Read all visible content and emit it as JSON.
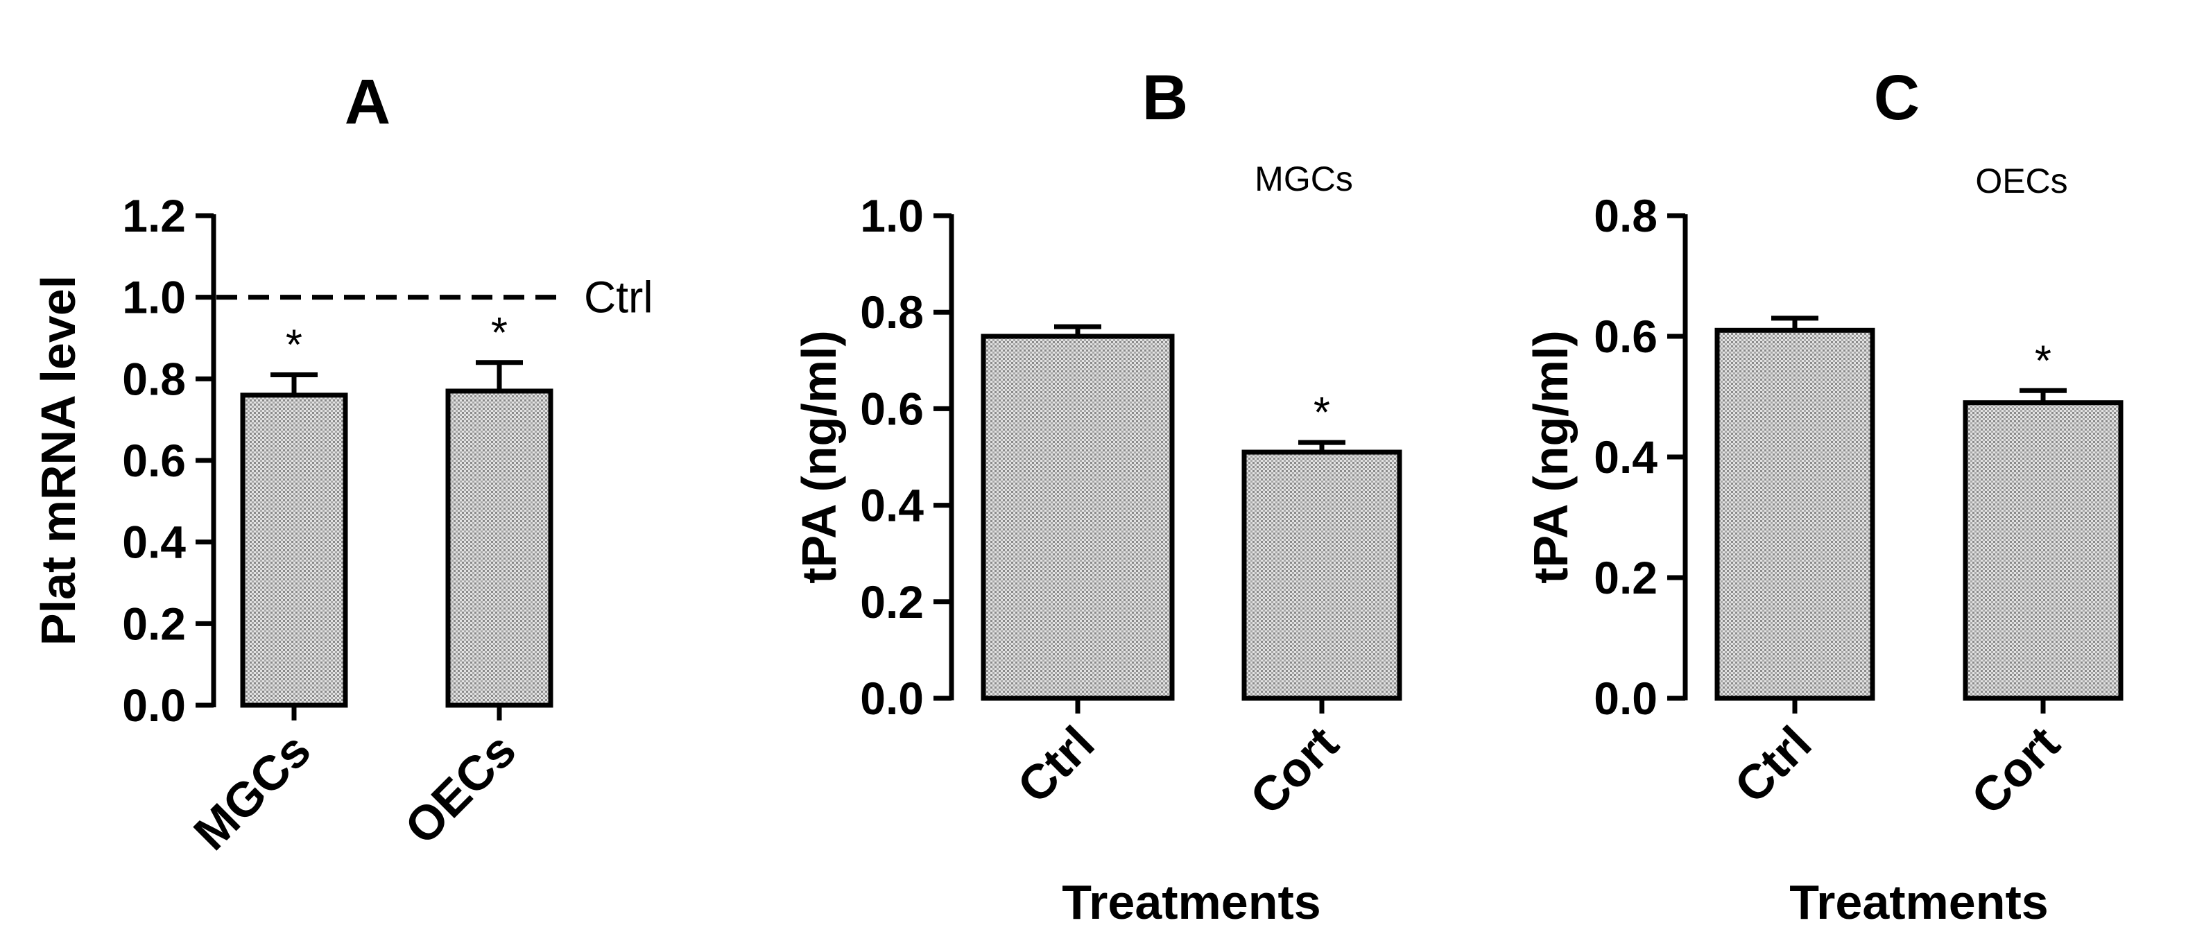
{
  "chart_data": [
    {
      "panel": "A",
      "type": "bar",
      "title": "",
      "categories": [
        "MGCs",
        "OECs"
      ],
      "values": [
        0.76,
        0.77
      ],
      "errors": [
        0.05,
        0.07
      ],
      "significance": [
        "*",
        "*"
      ],
      "xlabel": "",
      "ylabel": "Plat mRNA level",
      "ylim": [
        0,
        1.2
      ],
      "yticks": [
        "0.0",
        "0.2",
        "0.4",
        "0.6",
        "0.8",
        "1.0",
        "1.2"
      ],
      "reference_line": {
        "value": 1.0,
        "label": "Ctrl",
        "style": "dashed"
      },
      "bar_fill": "stippled grey"
    },
    {
      "panel": "B",
      "type": "bar",
      "title": "MGCs",
      "categories": [
        "Ctrl",
        "Cort"
      ],
      "values": [
        0.75,
        0.51
      ],
      "errors": [
        0.02,
        0.02
      ],
      "significance": [
        "",
        "*"
      ],
      "xlabel": "Treatments",
      "ylabel": "tPA (ng/ml)",
      "ylim": [
        0,
        1.0
      ],
      "yticks": [
        "0.0",
        "0.2",
        "0.4",
        "0.6",
        "0.8",
        "1.0"
      ],
      "bar_fill": "stippled grey"
    },
    {
      "panel": "C",
      "type": "bar",
      "title": "OECs",
      "categories": [
        "Ctrl",
        "Cort"
      ],
      "values": [
        0.61,
        0.49
      ],
      "errors": [
        0.02,
        0.02
      ],
      "significance": [
        "",
        "*"
      ],
      "xlabel": "Treatments",
      "ylabel": "tPA (ng/ml)",
      "ylim": [
        0,
        0.8
      ],
      "yticks": [
        "0.0",
        "0.2",
        "0.4",
        "0.6",
        "0.8"
      ],
      "bar_fill": "stippled grey"
    }
  ],
  "colors": {
    "bar_fill": "#bdbdbd",
    "outline": "#000000",
    "background": "#ffffff"
  }
}
